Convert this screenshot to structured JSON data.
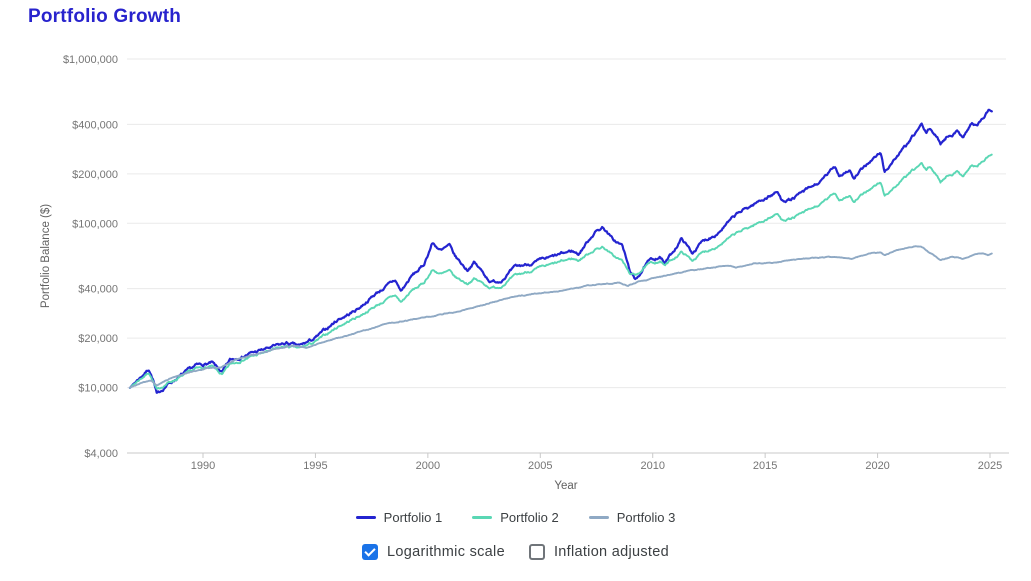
{
  "page": {
    "title": "Portfolio Growth",
    "title_color": "#2823cd",
    "background": "#ffffff"
  },
  "chart_data": {
    "type": "line",
    "title": "Portfolio Growth",
    "xlabel": "Year",
    "ylabel": "Portfolio Balance ($)",
    "y_scale": "logarithmic",
    "grid": true,
    "legend_position": "bottom",
    "x_range": [
      1986.75,
      2025.08
    ],
    "y_range": [
      4000,
      1000000
    ],
    "y_ticks": [
      {
        "value": 1000000,
        "label": "$1,000,000"
      },
      {
        "value": 400000,
        "label": "$400,000"
      },
      {
        "value": 200000,
        "label": "$200,000"
      },
      {
        "value": 100000,
        "label": "$100,000"
      },
      {
        "value": 40000,
        "label": "$40,000"
      },
      {
        "value": 20000,
        "label": "$20,000"
      },
      {
        "value": 10000,
        "label": "$10,000"
      },
      {
        "value": 4000,
        "label": "$4,000"
      }
    ],
    "x_ticks": [
      {
        "value": 1990,
        "label": "1990"
      },
      {
        "value": 1995,
        "label": "1995"
      },
      {
        "value": 2000,
        "label": "2000"
      },
      {
        "value": 2005,
        "label": "2005"
      },
      {
        "value": 2010,
        "label": "2010"
      },
      {
        "value": 2015,
        "label": "2015"
      },
      {
        "value": 2020,
        "label": "2020"
      },
      {
        "value": 2025,
        "label": "2025"
      }
    ],
    "series": [
      {
        "name": "Portfolio 1",
        "color": "#2424d0",
        "points": [
          [
            1986.75,
            10000
          ],
          [
            1987.1,
            11200
          ],
          [
            1987.6,
            13000
          ],
          [
            1987.8,
            11000
          ],
          [
            1987.95,
            9000
          ],
          [
            1988.4,
            10400
          ],
          [
            1989.0,
            11800
          ],
          [
            1989.7,
            13600
          ],
          [
            1990.4,
            14100
          ],
          [
            1990.85,
            12300
          ],
          [
            1991.2,
            14600
          ],
          [
            1992.0,
            16000
          ],
          [
            1993.0,
            17500
          ],
          [
            1993.7,
            18600
          ],
          [
            1994.3,
            17900
          ],
          [
            1995.0,
            20000
          ],
          [
            1996.0,
            26000
          ],
          [
            1996.6,
            28500
          ],
          [
            1997.0,
            31000
          ],
          [
            1997.7,
            37500
          ],
          [
            1998.55,
            45000
          ],
          [
            1998.8,
            38500
          ],
          [
            1999.3,
            48000
          ],
          [
            1999.8,
            55000
          ],
          [
            2000.2,
            76000
          ],
          [
            2000.6,
            68000
          ],
          [
            2000.95,
            73000
          ],
          [
            2001.2,
            63000
          ],
          [
            2001.75,
            52000
          ],
          [
            2002.05,
            58000
          ],
          [
            2002.4,
            51000
          ],
          [
            2002.8,
            44000
          ],
          [
            2003.2,
            44500
          ],
          [
            2003.9,
            54000
          ],
          [
            2004.8,
            58000
          ],
          [
            2005.5,
            62000
          ],
          [
            2006.4,
            68000
          ],
          [
            2006.7,
            65000
          ],
          [
            2007.4,
            88000
          ],
          [
            2007.8,
            95000
          ],
          [
            2008.2,
            80000
          ],
          [
            2008.65,
            73000
          ],
          [
            2008.95,
            53000
          ],
          [
            2009.2,
            45000
          ],
          [
            2009.8,
            58000
          ],
          [
            2010.3,
            63000
          ],
          [
            2010.55,
            57000
          ],
          [
            2011.3,
            81000
          ],
          [
            2011.75,
            66000
          ],
          [
            2012.2,
            77000
          ],
          [
            2012.9,
            88000
          ],
          [
            2013.8,
            115000
          ],
          [
            2014.8,
            138000
          ],
          [
            2015.55,
            155000
          ],
          [
            2015.7,
            140000
          ],
          [
            2016.15,
            139000
          ],
          [
            2016.6,
            152000
          ],
          [
            2017.5,
            180000
          ],
          [
            2018.1,
            222000
          ],
          [
            2018.3,
            196000
          ],
          [
            2018.75,
            212000
          ],
          [
            2018.95,
            186000
          ],
          [
            2019.6,
            235000
          ],
          [
            2020.15,
            268000
          ],
          [
            2020.3,
            205000
          ],
          [
            2020.85,
            255000
          ],
          [
            2021.4,
            310000
          ],
          [
            2021.95,
            398000
          ],
          [
            2022.15,
            352000
          ],
          [
            2022.35,
            378000
          ],
          [
            2022.8,
            307000
          ],
          [
            2023.1,
            340000
          ],
          [
            2023.55,
            362000
          ],
          [
            2023.8,
            340000
          ],
          [
            2024.2,
            408000
          ],
          [
            2024.4,
            390000
          ],
          [
            2024.75,
            445000
          ],
          [
            2024.95,
            490000
          ],
          [
            2025.08,
            480000
          ]
        ]
      },
      {
        "name": "Portfolio 2",
        "color": "#5ad7b4",
        "points": [
          [
            1986.75,
            10000
          ],
          [
            1987.1,
            11000
          ],
          [
            1987.6,
            12400
          ],
          [
            1987.8,
            10800
          ],
          [
            1987.95,
            9600
          ],
          [
            1988.4,
            10600
          ],
          [
            1989.0,
            11600
          ],
          [
            1989.7,
            13000
          ],
          [
            1990.4,
            13400
          ],
          [
            1990.85,
            11900
          ],
          [
            1991.2,
            13800
          ],
          [
            1992.0,
            15200
          ],
          [
            1993.0,
            16800
          ],
          [
            1993.7,
            17800
          ],
          [
            1994.3,
            17300
          ],
          [
            1995.0,
            19000
          ],
          [
            1996.0,
            23500
          ],
          [
            1997.0,
            27500
          ],
          [
            1997.7,
            31500
          ],
          [
            1998.55,
            36500
          ],
          [
            1998.8,
            33000
          ],
          [
            1999.3,
            39000
          ],
          [
            1999.8,
            43000
          ],
          [
            2000.2,
            52000
          ],
          [
            2000.6,
            49000
          ],
          [
            2000.95,
            51000
          ],
          [
            2001.2,
            47000
          ],
          [
            2001.75,
            43000
          ],
          [
            2002.05,
            46000
          ],
          [
            2002.4,
            43500
          ],
          [
            2002.8,
            40500
          ],
          [
            2003.2,
            41000
          ],
          [
            2003.9,
            48000
          ],
          [
            2004.8,
            52500
          ],
          [
            2005.5,
            56000
          ],
          [
            2006.4,
            61000
          ],
          [
            2006.7,
            59500
          ],
          [
            2007.4,
            69000
          ],
          [
            2007.8,
            72000
          ],
          [
            2008.2,
            64000
          ],
          [
            2008.65,
            59000
          ],
          [
            2008.95,
            50000
          ],
          [
            2009.2,
            48000
          ],
          [
            2009.8,
            56000
          ],
          [
            2010.3,
            59000
          ],
          [
            2010.55,
            55500
          ],
          [
            2011.3,
            67000
          ],
          [
            2011.75,
            59500
          ],
          [
            2012.2,
            66000
          ],
          [
            2012.9,
            73000
          ],
          [
            2013.8,
            88000
          ],
          [
            2014.8,
            102000
          ],
          [
            2015.55,
            114000
          ],
          [
            2015.7,
            106000
          ],
          [
            2016.15,
            106500
          ],
          [
            2016.6,
            114000
          ],
          [
            2017.5,
            131000
          ],
          [
            2018.1,
            153000
          ],
          [
            2018.3,
            139000
          ],
          [
            2018.75,
            148000
          ],
          [
            2018.95,
            134000
          ],
          [
            2019.6,
            160000
          ],
          [
            2020.15,
            177000
          ],
          [
            2020.3,
            147000
          ],
          [
            2020.85,
            170000
          ],
          [
            2021.4,
            200000
          ],
          [
            2021.95,
            230000
          ],
          [
            2022.15,
            210000
          ],
          [
            2022.35,
            221000
          ],
          [
            2022.8,
            179000
          ],
          [
            2023.1,
            196000
          ],
          [
            2023.55,
            206000
          ],
          [
            2023.8,
            196000
          ],
          [
            2024.2,
            226000
          ],
          [
            2024.4,
            220000
          ],
          [
            2024.75,
            242000
          ],
          [
            2024.95,
            256000
          ],
          [
            2025.08,
            262000
          ]
        ]
      },
      {
        "name": "Portfolio 3",
        "color": "#8fa9c4",
        "points": [
          [
            1986.75,
            10000
          ],
          [
            1987.3,
            10800
          ],
          [
            1987.7,
            11000
          ],
          [
            1987.95,
            10300
          ],
          [
            1988.5,
            11300
          ],
          [
            1989.3,
            12300
          ],
          [
            1990.2,
            13100
          ],
          [
            1990.8,
            13300
          ],
          [
            1991.5,
            14800
          ],
          [
            1992.3,
            15900
          ],
          [
            1993.3,
            17300
          ],
          [
            1994.0,
            17900
          ],
          [
            1994.6,
            17500
          ],
          [
            1995.5,
            19300
          ],
          [
            1996.3,
            20500
          ],
          [
            1997.2,
            22300
          ],
          [
            1998.2,
            24500
          ],
          [
            1999.0,
            25500
          ],
          [
            1999.8,
            26600
          ],
          [
            2000.6,
            27800
          ],
          [
            2001.4,
            29300
          ],
          [
            2002.2,
            31200
          ],
          [
            2003.0,
            33500
          ],
          [
            2003.8,
            35500
          ],
          [
            2004.6,
            37000
          ],
          [
            2005.4,
            38200
          ],
          [
            2006.2,
            39300
          ],
          [
            2007.0,
            41500
          ],
          [
            2007.8,
            43000
          ],
          [
            2008.5,
            43500
          ],
          [
            2008.9,
            41800
          ],
          [
            2009.5,
            44500
          ],
          [
            2010.2,
            46800
          ],
          [
            2010.9,
            49000
          ],
          [
            2011.6,
            51200
          ],
          [
            2012.4,
            53200
          ],
          [
            2013.3,
            55500
          ],
          [
            2013.7,
            53800
          ],
          [
            2014.5,
            57000
          ],
          [
            2015.3,
            57500
          ],
          [
            2016.2,
            59800
          ],
          [
            2017.1,
            61800
          ],
          [
            2018.0,
            62300
          ],
          [
            2018.9,
            60800
          ],
          [
            2019.6,
            65500
          ],
          [
            2020.15,
            66500
          ],
          [
            2020.3,
            64000
          ],
          [
            2020.9,
            69000
          ],
          [
            2021.6,
            72500
          ],
          [
            2022.0,
            71000
          ],
          [
            2022.4,
            65000
          ],
          [
            2022.8,
            59800
          ],
          [
            2023.3,
            62500
          ],
          [
            2023.8,
            60800
          ],
          [
            2024.3,
            64500
          ],
          [
            2024.7,
            66000
          ],
          [
            2024.9,
            63800
          ],
          [
            2025.08,
            65500
          ]
        ]
      }
    ]
  },
  "controls": {
    "accent_color": "#1a73e8",
    "logarithmic": {
      "label": "Logarithmic scale",
      "checked": true
    },
    "inflation": {
      "label": "Inflation adjusted",
      "checked": false
    }
  }
}
